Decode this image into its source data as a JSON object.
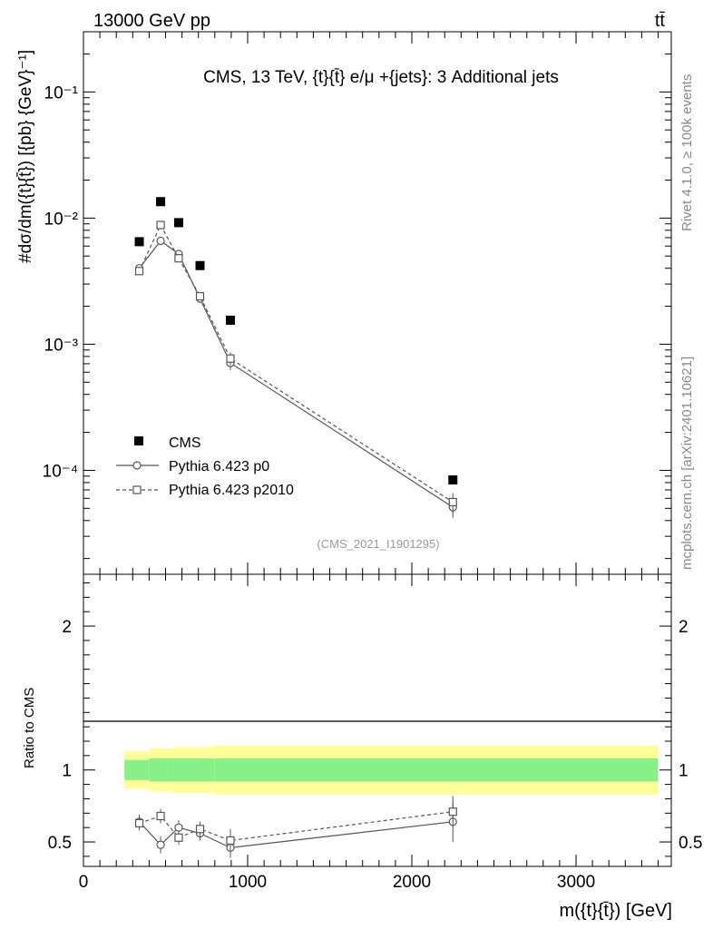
{
  "header": {
    "energy_label": "13000 GeV pp",
    "process_label": "tt̄"
  },
  "side": {
    "rivet": "Rivet 4.1.0, ≥ 100k events",
    "mcplots": "mcplots.cern.ch [arXiv:2401.10621]"
  },
  "colors": {
    "data": "#000000",
    "mc": "#555555",
    "band_inner": "#88f088",
    "band_outer": "#ffff99"
  },
  "chart_data": [
    {
      "type": "scatter",
      "title": "CMS, 13 TeV, {t}{t̄} e/μ +{jets}: 3 Additional jets",
      "analysis_id": "(CMS_2021_I1901295)",
      "ylabel": "#dσ/dm({t}{t̄}) [{pb} {GeV}⁻¹]",
      "yscale": "log",
      "ylim": [
        1.5e-05,
        0.3
      ],
      "xlim": [
        0,
        3580
      ],
      "ytick_labels": [
        "10⁻⁴",
        "10⁻³",
        "10⁻²",
        "10⁻¹"
      ],
      "ytick_values": [
        0.0001,
        0.001,
        0.01,
        0.1
      ],
      "legend": {
        "position": "lower-left",
        "entries": [
          "CMS",
          "Pythia 6.423 p0",
          "Pythia 6.423 p2010"
        ]
      },
      "series": [
        {
          "name": "CMS",
          "marker": "filled-square",
          "x": [
            340,
            470,
            580,
            710,
            895,
            2250
          ],
          "y": [
            0.0065,
            0.0135,
            0.0092,
            0.0042,
            0.00155,
            8.4e-05
          ]
        },
        {
          "name": "Pythia 6.423 p0",
          "marker": "open-circle",
          "line": "solid",
          "x": [
            340,
            470,
            580,
            710,
            895,
            2250
          ],
          "y": [
            0.004,
            0.0066,
            0.0052,
            0.0023,
            0.00071,
            5.1e-05
          ],
          "err": [
            0.0002,
            0.0003,
            0.0003,
            0.00015,
            9e-05,
            9e-06
          ]
        },
        {
          "name": "Pythia 6.423 p2010",
          "marker": "open-square",
          "line": "dashed",
          "x": [
            340,
            470,
            580,
            710,
            895,
            2250
          ],
          "y": [
            0.0038,
            0.0088,
            0.0048,
            0.0024,
            0.00077,
            5.6e-05
          ],
          "err": [
            0.0002,
            0.0004,
            0.0003,
            0.00015,
            9e-05,
            1e-05
          ]
        }
      ]
    },
    {
      "type": "line",
      "ylabel": "Ratio to CMS",
      "xlabel": "m({t}{t̄}) [GeV]",
      "ylim": [
        0.33,
        2.36
      ],
      "xlim": [
        0,
        3580
      ],
      "xtick_labels": [
        "0",
        "1000",
        "2000",
        "3000"
      ],
      "xtick_values": [
        0,
        1000,
        2000,
        3000
      ],
      "ytick_labels": [
        "0.5",
        "1",
        "2"
      ],
      "ytick_values": [
        0.5,
        1,
        2
      ],
      "band": {
        "x_edges": [
          250,
          400,
          550,
          800,
          3500
        ],
        "inner_half": [
          0.07,
          0.08,
          0.08,
          0.08
        ],
        "outer_half": [
          0.13,
          0.15,
          0.16,
          0.17
        ]
      },
      "series": [
        {
          "name": "Pythia 6.423 p0",
          "marker": "open-circle",
          "line": "solid",
          "x": [
            340,
            470,
            580,
            710,
            895,
            2250
          ],
          "y": [
            0.64,
            0.48,
            0.6,
            0.56,
            0.46,
            0.64
          ],
          "err": [
            0.05,
            0.06,
            0.05,
            0.05,
            0.07,
            0.14
          ]
        },
        {
          "name": "Pythia 6.423 p2010",
          "marker": "open-square",
          "line": "dashed",
          "x": [
            340,
            470,
            580,
            710,
            895,
            2250
          ],
          "y": [
            0.63,
            0.68,
            0.53,
            0.59,
            0.51,
            0.71
          ],
          "err": [
            0.05,
            0.05,
            0.05,
            0.05,
            0.08,
            0.11
          ]
        }
      ]
    }
  ]
}
